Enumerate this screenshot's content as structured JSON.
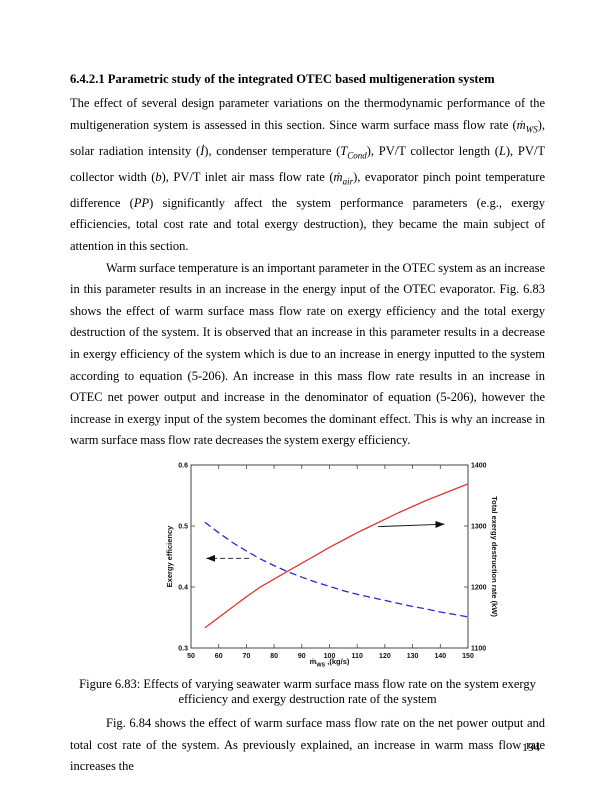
{
  "page": {
    "number": "194"
  },
  "section": {
    "heading": "6.4.2.1 Parametric study of the integrated OTEC based multigeneration system"
  },
  "paragraphs": {
    "p1_html": "The effect of several design parameter variations on the thermodynamic performance of the multigeneration system is assessed in this section. Since warm surface mass flow rate (<i>ṁ<sub>WS</sub></i>), solar radiation intensity (<i>İ</i>), condenser temperature (<i>T<sub>Cond</sub></i>), PV/T collector length (<i>L</i>), PV/T collector width (<i>b</i>), PV/T inlet air mass flow rate (<i>ṁ<sub>air</sub></i>), evaporator pinch point temperature difference (<i>PP</i>) significantly affect the system performance parameters (e.g., exergy efficiencies, total cost rate and total exergy destruction), they became the main subject of attention in this section.",
    "p2": "Warm surface temperature is an important parameter in the OTEC system as an increase in this parameter results in an increase in the energy input of the OTEC evaporator. Fig. 6.83 shows the effect of warm surface mass flow rate on exergy efficiency and the total exergy destruction of the system. It is observed that an increase in this parameter results in a decrease in exergy efficiency of the system which is due to an increase in energy inputted to the system according to equation (5-206). An increase in this mass flow rate results in an increase in OTEC net power output and increase in the denominator of equation (5-206), however the increase in exergy input of the system becomes the dominant effect. This is why an increase in warm surface mass flow rate decreases the system exergy efficiency.",
    "p3": "Fig. 6.84 shows the effect of warm surface mass flow rate on the net power output and total cost rate of the system. As previously explained, an increase in warm mass flow rate increases the"
  },
  "figure": {
    "caption": "Figure 6.83: Effects of varying seawater warm surface mass flow rate on the system exergy efficiency and exergy destruction rate of the system"
  },
  "chart_data": {
    "type": "line",
    "title": "",
    "xlabel_parts": {
      "pre": "ṁ",
      "sub": "WS",
      "post": " ,(kg/s)"
    },
    "ylabel_left": "Exergy efficiency",
    "ylabel_right": "Total exergy destruction rate (kW)",
    "xlim": [
      50,
      150
    ],
    "ylim_left": [
      0.3,
      0.6
    ],
    "ylim_right": [
      1100,
      1400
    ],
    "xticks": [
      50,
      60,
      70,
      80,
      90,
      100,
      110,
      120,
      130,
      140,
      150
    ],
    "yticks_left": [
      "0.3",
      "0.4",
      "0.5",
      "0.6"
    ],
    "yticks_right": [
      "1100",
      "1200",
      "1300",
      "1400"
    ],
    "grid": false,
    "legend": "none",
    "frame_color": "#444444",
    "series": [
      {
        "name": "Exergy efficiency",
        "axis": "left",
        "color": "#2929d6",
        "style": "dashed",
        "x": [
          55,
          60,
          65,
          70,
          75,
          80,
          85,
          90,
          95,
          100,
          105,
          110,
          115,
          120,
          125,
          130,
          135,
          140,
          145,
          150
        ],
        "y": [
          0.506,
          0.489,
          0.473,
          0.459,
          0.446,
          0.435,
          0.425,
          0.416,
          0.408,
          0.401,
          0.394,
          0.388,
          0.383,
          0.378,
          0.373,
          0.368,
          0.364,
          0.359,
          0.355,
          0.351
        ]
      },
      {
        "name": "Total exergy destruction rate (kW)",
        "axis": "right",
        "color": "#e43434",
        "style": "solid",
        "x": [
          55,
          60,
          65,
          70,
          75,
          80,
          85,
          90,
          95,
          100,
          105,
          110,
          115,
          120,
          125,
          130,
          135,
          140,
          145,
          150
        ],
        "y": [
          1133,
          1150,
          1167,
          1184,
          1200,
          1213,
          1226,
          1239,
          1252,
          1265,
          1277,
          1289,
          1300,
          1311,
          1322,
          1332,
          1342,
          1351,
          1360,
          1369
        ]
      }
    ],
    "annotations": [
      {
        "type": "arrow",
        "style": "dashed",
        "axis": "left",
        "from": [
          71,
          0.447
        ],
        "to": [
          55.5,
          0.447
        ]
      },
      {
        "type": "arrow",
        "style": "solid",
        "axis": "right",
        "from": [
          117.5,
          1299
        ],
        "to": [
          141.5,
          1303
        ]
      }
    ]
  }
}
